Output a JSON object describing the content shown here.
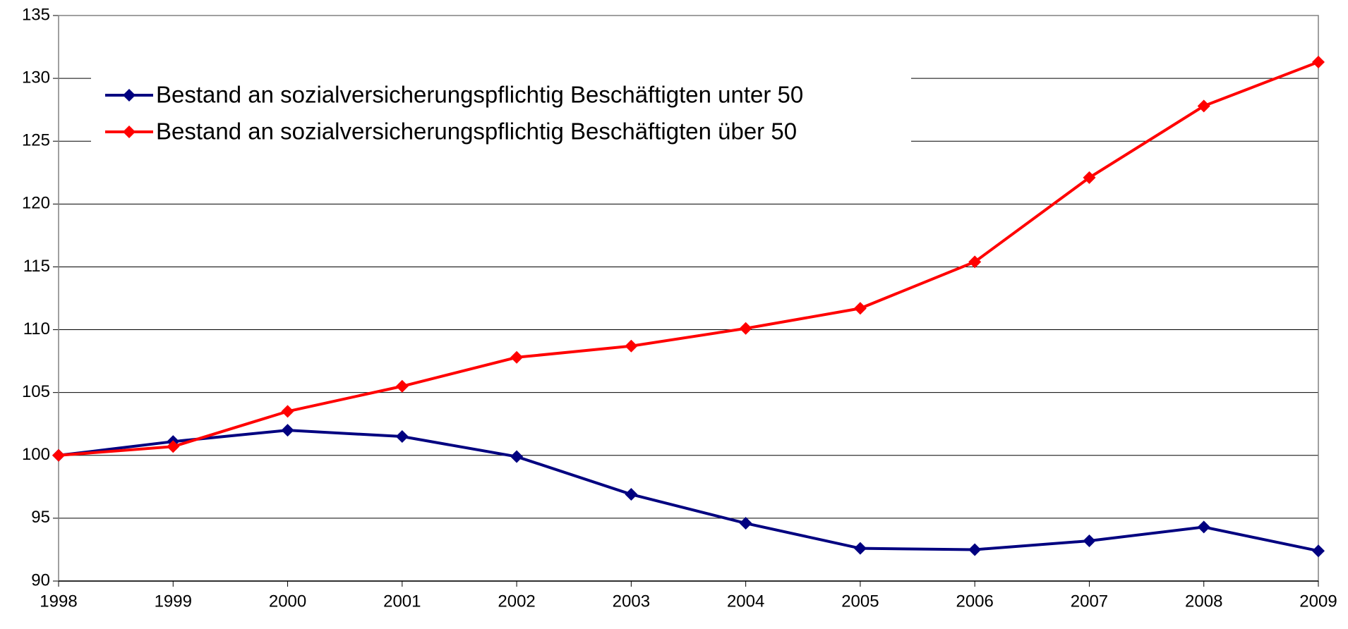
{
  "chart_data": {
    "type": "line",
    "x": [
      1998,
      1999,
      2000,
      2001,
      2002,
      2003,
      2004,
      2005,
      2006,
      2007,
      2008,
      2009
    ],
    "series": [
      {
        "name": "Bestand an sozialversicherungspflichtig Beschäftigten unter 50",
        "color": "#000080",
        "values": [
          100,
          101.1,
          102,
          101.5,
          99.9,
          96.9,
          94.6,
          92.6,
          92.5,
          93.2,
          94.3,
          92.4
        ]
      },
      {
        "name": "Bestand an sozialversicherungspflichtig Beschäftigten über 50",
        "color": "#ff0000",
        "values": [
          100,
          100.7,
          103.5,
          105.5,
          107.8,
          108.7,
          110.1,
          111.7,
          115.4,
          122.1,
          127.8,
          131.3
        ]
      }
    ],
    "xlim": [
      1998,
      2009
    ],
    "xticks": [
      1998,
      1999,
      2000,
      2001,
      2002,
      2003,
      2004,
      2005,
      2006,
      2007,
      2008,
      2009
    ],
    "ylim": [
      90,
      135
    ],
    "yticks": [
      90,
      95,
      100,
      105,
      110,
      115,
      120,
      125,
      130,
      135
    ],
    "grid": true,
    "legend": "upper-left"
  }
}
